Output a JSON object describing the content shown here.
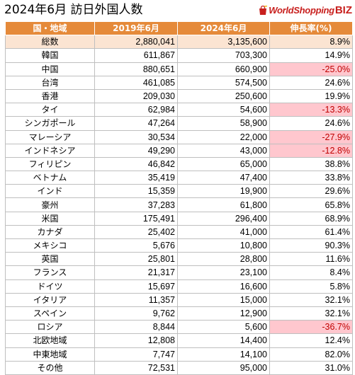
{
  "title": "2024年6月 訪日外国人数",
  "logo": {
    "text": "WorldShopping",
    "suffix": "BIZ",
    "mark_icon": "shopping-bag-icon",
    "color": "#c8201e"
  },
  "colors": {
    "header_bg": "#e58a3a",
    "total_bg": "#fbe4d2",
    "negative_bg": "#ffc7ce",
    "negative_text": "#c00000"
  },
  "table": {
    "headers": [
      "国・地域",
      "2019年6月",
      "2024年6月",
      "伸長率(%)"
    ],
    "rows": [
      {
        "name": "総数",
        "y2019": "2,880,041",
        "y2024": "3,135,600",
        "growth": "8.9%",
        "total": true
      },
      {
        "name": "韓国",
        "y2019": "611,867",
        "y2024": "703,300",
        "growth": "14.9%"
      },
      {
        "name": "中国",
        "y2019": "880,651",
        "y2024": "660,900",
        "growth": "-25.0%",
        "negative": true
      },
      {
        "name": "台湾",
        "y2019": "461,085",
        "y2024": "574,500",
        "growth": "24.6%"
      },
      {
        "name": "香港",
        "y2019": "209,030",
        "y2024": "250,600",
        "growth": "19.9%"
      },
      {
        "name": "タイ",
        "y2019": "62,984",
        "y2024": "54,600",
        "growth": "-13.3%",
        "negative": true
      },
      {
        "name": "シンガポール",
        "y2019": "47,264",
        "y2024": "58,900",
        "growth": "24.6%"
      },
      {
        "name": "マレーシア",
        "y2019": "30,534",
        "y2024": "22,000",
        "growth": "-27.9%",
        "negative": true
      },
      {
        "name": "インドネシア",
        "y2019": "49,290",
        "y2024": "43,000",
        "growth": "-12.8%",
        "negative": true
      },
      {
        "name": "フィリピン",
        "y2019": "46,842",
        "y2024": "65,000",
        "growth": "38.8%"
      },
      {
        "name": "ベトナム",
        "y2019": "35,419",
        "y2024": "47,400",
        "growth": "33.8%"
      },
      {
        "name": "インド",
        "y2019": "15,359",
        "y2024": "19,900",
        "growth": "29.6%"
      },
      {
        "name": "豪州",
        "y2019": "37,283",
        "y2024": "61,800",
        "growth": "65.8%"
      },
      {
        "name": "米国",
        "y2019": "175,491",
        "y2024": "296,400",
        "growth": "68.9%"
      },
      {
        "name": "カナダ",
        "y2019": "25,402",
        "y2024": "41,000",
        "growth": "61.4%"
      },
      {
        "name": "メキシコ",
        "y2019": "5,676",
        "y2024": "10,800",
        "growth": "90.3%"
      },
      {
        "name": "英国",
        "y2019": "25,801",
        "y2024": "28,800",
        "growth": "11.6%"
      },
      {
        "name": "フランス",
        "y2019": "21,317",
        "y2024": "23,100",
        "growth": "8.4%"
      },
      {
        "name": "ドイツ",
        "y2019": "15,697",
        "y2024": "16,600",
        "growth": "5.8%"
      },
      {
        "name": "イタリア",
        "y2019": "11,357",
        "y2024": "15,000",
        "growth": "32.1%"
      },
      {
        "name": "スペイン",
        "y2019": "9,762",
        "y2024": "12,900",
        "growth": "32.1%"
      },
      {
        "name": "ロシア",
        "y2019": "8,844",
        "y2024": "5,600",
        "growth": "-36.7%",
        "negative": true
      },
      {
        "name": "北欧地域",
        "y2019": "12,808",
        "y2024": "14,400",
        "growth": "12.4%"
      },
      {
        "name": "中東地域",
        "y2019": "7,747",
        "y2024": "14,100",
        "growth": "82.0%"
      },
      {
        "name": "その他",
        "y2019": "72,531",
        "y2024": "95,000",
        "growth": "31.0%"
      }
    ]
  }
}
